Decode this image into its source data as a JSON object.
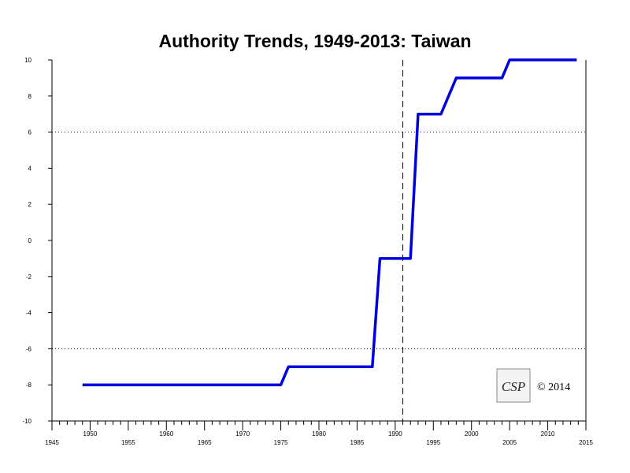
{
  "chart_data": {
    "type": "line",
    "title": "Authority Trends, 1949-2013: Taiwan",
    "xlabel": "",
    "ylabel": "",
    "xlim": [
      1945,
      2015
    ],
    "ylim": [
      -10,
      10
    ],
    "x_ticks": [
      1945,
      1950,
      1955,
      1960,
      1965,
      1970,
      1975,
      1980,
      1985,
      1990,
      1995,
      2000,
      2005,
      2010,
      2015
    ],
    "y_ticks": [
      -10,
      -8,
      -6,
      -4,
      -2,
      0,
      2,
      4,
      6,
      8,
      10
    ],
    "reference_lines": {
      "horizontal_dotted": [
        6,
        -6
      ],
      "vertical_dashed": [
        1991
      ]
    },
    "series": [
      {
        "color": "#0000dd",
        "points": [
          [
            1949,
            -8
          ],
          [
            1975,
            -8
          ],
          [
            1976,
            -7
          ],
          [
            1987,
            -7
          ],
          [
            1988,
            -1
          ],
          [
            1992,
            -1
          ],
          [
            1993,
            7
          ],
          [
            1996,
            7
          ],
          [
            1998,
            9
          ],
          [
            2004,
            9
          ],
          [
            2005,
            10
          ],
          [
            2013.8,
            10
          ]
        ]
      }
    ],
    "grid": false
  },
  "logo": {
    "text": "CSP"
  },
  "copyright": "© 2014"
}
